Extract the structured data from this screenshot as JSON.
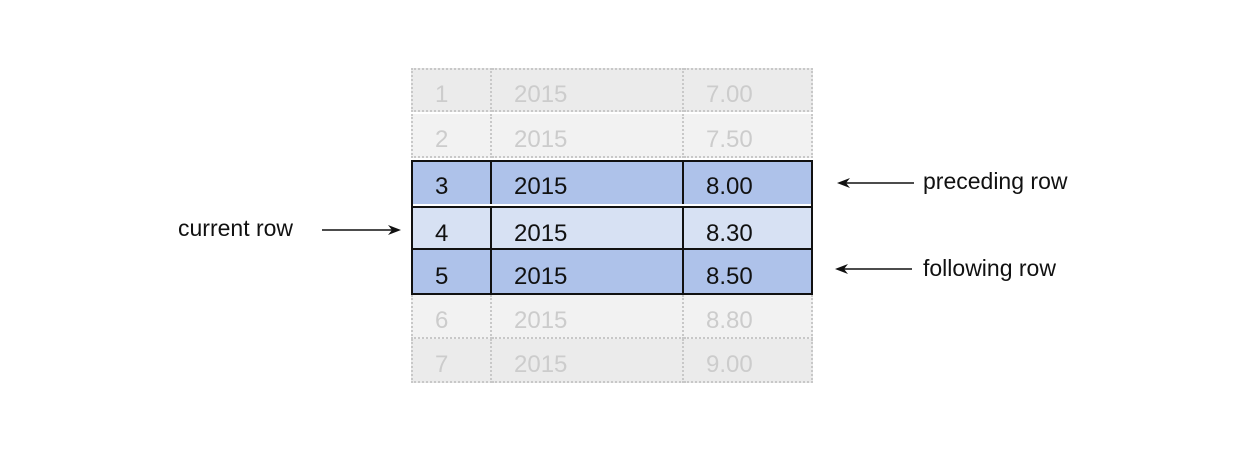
{
  "rows": [
    {
      "id": "1",
      "year": "2015",
      "value": "7.00"
    },
    {
      "id": "2",
      "year": "2015",
      "value": "7.50"
    },
    {
      "id": "3",
      "year": "2015",
      "value": "8.00"
    },
    {
      "id": "4",
      "year": "2015",
      "value": "8.30"
    },
    {
      "id": "5",
      "year": "2015",
      "value": "8.50"
    },
    {
      "id": "6",
      "year": "2015",
      "value": "8.80"
    },
    {
      "id": "7",
      "year": "2015",
      "value": "9.00"
    }
  ],
  "labels": {
    "current": "current row",
    "preceding": "preceding row",
    "following": "following row"
  },
  "colors": {
    "highlight_dark": "#aec2ea",
    "highlight_light": "#d7e1f3",
    "dim_text": "#cccccc"
  }
}
